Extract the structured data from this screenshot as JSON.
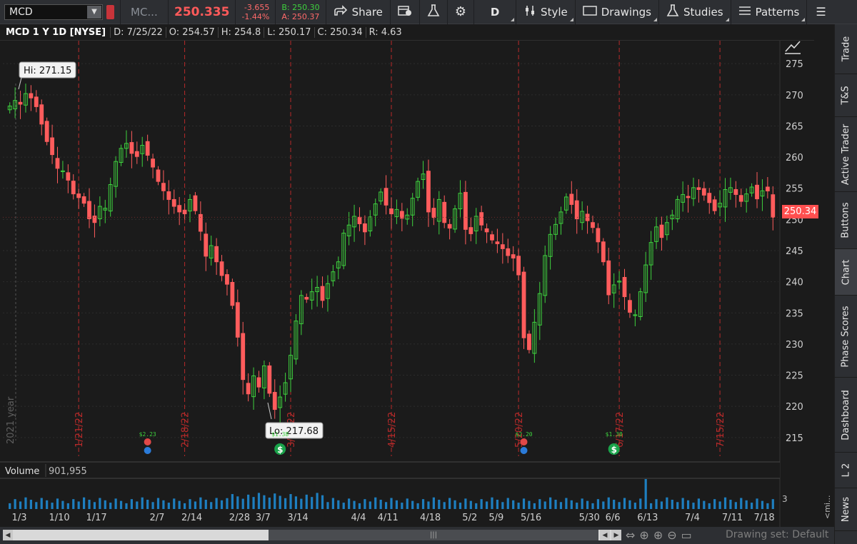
{
  "toolbar": {
    "symbol": "MCD",
    "company": "MC...",
    "last_price": "250.335",
    "change": "-3.655",
    "change_pct": "-1.44%",
    "bid": "B: 250.30",
    "ask": "A: 250.37",
    "share_label": "Share",
    "aggregation": "D",
    "style_label": "Style",
    "drawings_label": "Drawings",
    "studies_label": "Studies",
    "patterns_label": "Patterns"
  },
  "header": {
    "title": "MCD 1 Y 1D [NYSE]",
    "date": "D: 7/25/22",
    "open": "O: 254.57",
    "high": "H: 254.8",
    "low": "L: 250.17",
    "close": "C: 250.34",
    "range": "R: 4.63"
  },
  "chart": {
    "hi_label": "Hi: 271.15",
    "lo_label": "Lo: 217.68",
    "current_price": "250.34",
    "year_label": "2021 year",
    "volume_label": "Volume",
    "volume_value": "901,955",
    "volume_axis": "3",
    "collapse_label": "<mi..."
  },
  "chart_data": {
    "type": "candlestick",
    "symbol": "MCD",
    "y_ticks": [
      275,
      270,
      265,
      260,
      255,
      250,
      245,
      240,
      235,
      230,
      225,
      220,
      215
    ],
    "ylim": [
      212,
      278
    ],
    "x_labels": [
      "1/3",
      "1/10",
      "1/17",
      "2/7",
      "2/14",
      "2/28",
      "3/7",
      "3/14",
      "4/4",
      "4/11",
      "4/18",
      "5/2",
      "5/9",
      "5/16",
      "5/30",
      "6/6",
      "6/13",
      "7/4",
      "7/11",
      "7/18"
    ],
    "expiration_markers": [
      "1/21/22",
      "2/18/22",
      "3/18/22",
      "4/15/22",
      "5/20/22",
      "6/17/22",
      "7/15/22"
    ],
    "dividends": [
      "$2.23",
      "$1.38",
      "$2.20",
      "$1.38"
    ],
    "hi": 271.15,
    "lo": 217.68,
    "last": 250.34,
    "closes": [
      268.2,
      269.1,
      268.5,
      270.2,
      269.5,
      268.1,
      265.3,
      262.5,
      260.4,
      258.2,
      257.8,
      256.3,
      254.1,
      253.5,
      252.6,
      250.1,
      249.5,
      252.1,
      251.8,
      255.6,
      259.3,
      261.4,
      262.2,
      260.6,
      260.1,
      261.9,
      260.3,
      258.4,
      256.1,
      254.6,
      253.2,
      252.1,
      251.2,
      250.9,
      253.2,
      251.4,
      248.1,
      244.1,
      245.8,
      243.2,
      241.0,
      239.6,
      236.2,
      231.1,
      224.3,
      222.0,
      224.9,
      223.1,
      226.5,
      222.1,
      219.5,
      221.5,
      223.8,
      228.2,
      233.7,
      237.8,
      237.2,
      238.4,
      239.1,
      237.0,
      239.7,
      241.6,
      243.2,
      247.8,
      249.1,
      250.5,
      249.3,
      248.0,
      250.4,
      252.5,
      254.4,
      252.3,
      250.9,
      251.6,
      250.2,
      250.7,
      253.4,
      256.1,
      257.3,
      251.2,
      250.3,
      253.2,
      249.5,
      248.6,
      251.7,
      254.2,
      248.4,
      247.7,
      250.5,
      249.1,
      248.0,
      246.7,
      246.1,
      245.3,
      244.2,
      243.8,
      241.1,
      231.0,
      229.1,
      233.5,
      238.1,
      244.2,
      247.6,
      249.2,
      251.2,
      253.6,
      252.4,
      250.1,
      251.3,
      249.8,
      248.7,
      246.4,
      243.2,
      237.9,
      239.5,
      240.1,
      237.6,
      235.1,
      234.7,
      238.4,
      242.7,
      246.3,
      248.8,
      247.1,
      249.5,
      250.7,
      253.2,
      254.0,
      253.5,
      255.1,
      254.8,
      253.9,
      252.7,
      251.4,
      252.6,
      254.8,
      255.1,
      254.0,
      252.9,
      254.1,
      255.2,
      253.3,
      254.6,
      254.57,
      250.34
    ]
  },
  "side_tabs": [
    "Trade",
    "T&S",
    "Active Trader",
    "Buttons",
    "Chart",
    "Phase Scores",
    "Dashboard",
    "L 2",
    "News"
  ],
  "bottom": {
    "drawing_set": "Drawing set: Default"
  },
  "colors": {
    "up": "#3ed13e",
    "down": "#ff5c5c",
    "expiration_line": "#b92a2a",
    "volume": "#1e7fc0",
    "accent": "#ff4f4f"
  }
}
